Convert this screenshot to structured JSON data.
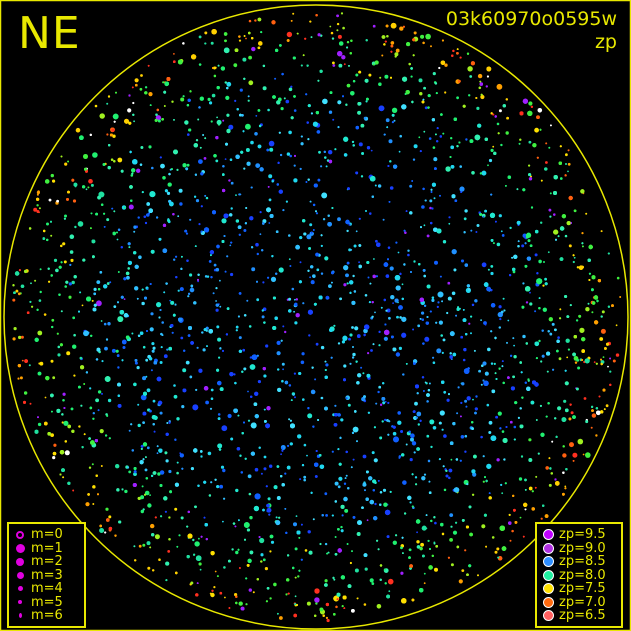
{
  "header": {
    "direction": "NE",
    "frame_id": "03k60970o0595w",
    "mode": "zp"
  },
  "colors": {
    "frame": "#e8e800",
    "background": "#000000"
  },
  "magnitude_legend": [
    {
      "label": "m=0",
      "size": 8,
      "hollow": true
    },
    {
      "label": "m=1",
      "size": 9
    },
    {
      "label": "m=2",
      "size": 8
    },
    {
      "label": "m=3",
      "size": 7
    },
    {
      "label": "m=4",
      "size": 5
    },
    {
      "label": "m=5",
      "size": 4
    },
    {
      "label": "m=6",
      "size": 3
    }
  ],
  "zp_legend": [
    {
      "label": "zp=9.5",
      "color": "#c000ff"
    },
    {
      "label": "zp=9.0",
      "color": "#b030e0"
    },
    {
      "label": "zp=8.5",
      "color": "#2f8fff"
    },
    {
      "label": "zp=8.0",
      "color": "#20f0a0"
    },
    {
      "label": "zp=7.5",
      "color": "#ffe000"
    },
    {
      "label": "zp=7.0",
      "color": "#ff6a10"
    },
    {
      "label": "zp=6.5",
      "color": "#ff6060"
    }
  ]
}
